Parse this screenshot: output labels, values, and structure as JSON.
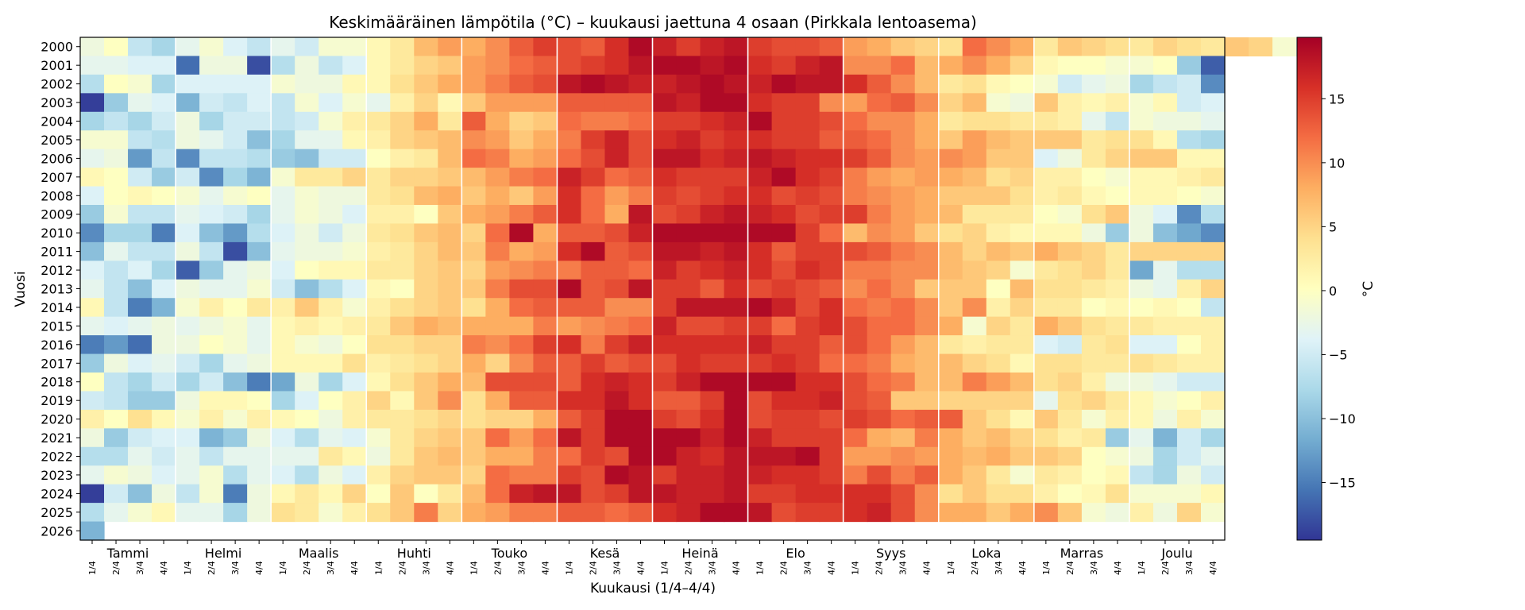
{
  "chart_data": {
    "type": "heatmap",
    "title": "Keskimääräinen lämpötila (°C) – kuukausi jaettuna 4 osaan (Pirkkala lentoasema)",
    "xlabel": "Kuukausi (1/4–4/4)",
    "ylabel": "Vuosi",
    "colorbar_label": "°C",
    "colormap": "RdYlBu_r",
    "vmin": -19.5,
    "vmax": 19.8,
    "colorbar_ticks": [
      -15,
      -10,
      -5,
      0,
      5,
      10,
      15
    ],
    "colorbar_tick_labels": [
      "−15",
      "−10",
      "−5",
      "0",
      "5",
      "10",
      "15"
    ],
    "years": [
      "2000",
      "2001",
      "2002",
      "2003",
      "2004",
      "2005",
      "2006",
      "2007",
      "2008",
      "2009",
      "2010",
      "2011",
      "2012",
      "2013",
      "2014",
      "2015",
      "2016",
      "2017",
      "2018",
      "2019",
      "2020",
      "2021",
      "2022",
      "2023",
      "2024",
      "2025",
      "2026"
    ],
    "months": [
      "Tammi",
      "Helmi",
      "Maalis",
      "Huhti",
      "Touko",
      "Kesä",
      "Heinä",
      "Elo",
      "Syys",
      "Loka",
      "Marras",
      "Joulu"
    ],
    "quarter_labels": [
      "1/4",
      "2/4",
      "3/4",
      "4/4"
    ],
    "values": [
      [
        -2,
        0,
        -6,
        -8,
        -3,
        -1,
        -4,
        -6,
        -3,
        -5,
        -1,
        -1,
        1,
        3,
        7,
        9,
        8,
        10,
        13,
        15,
        14,
        13,
        16,
        19,
        17,
        15,
        17,
        18,
        15,
        14,
        14,
        13,
        9,
        8,
        6,
        5,
        4,
        12,
        10,
        8,
        3,
        6,
        5,
        4,
        3,
        5,
        4,
        3,
        6,
        5,
        -1,
        -4
      ],
      [
        -3,
        -3,
        -4,
        -4,
        -16,
        -2,
        -2,
        -18,
        -7,
        -2,
        -6,
        -4,
        1,
        3,
        5,
        6,
        9,
        10,
        12,
        13,
        14,
        15,
        16,
        18,
        19,
        19,
        18,
        19,
        16,
        15,
        17,
        18,
        10,
        10,
        12,
        7,
        8,
        10,
        8,
        5,
        1,
        0,
        0,
        -1,
        -1,
        0,
        -9,
        -17
      ],
      [
        -7,
        0,
        -1,
        -8,
        -4,
        -4,
        -4,
        -4,
        -1,
        -2,
        -2,
        1,
        1,
        4,
        6,
        8,
        9,
        11,
        13,
        14,
        18,
        19,
        18,
        17,
        17,
        18,
        19,
        18,
        17,
        19,
        18,
        18,
        16,
        13,
        10,
        7,
        3,
        4,
        1,
        0,
        -1,
        -5,
        -3,
        -2,
        -8,
        -6,
        -5,
        -14
      ],
      [
        -19,
        -9,
        -3,
        -4,
        -11,
        -5,
        -6,
        -4,
        -6,
        -1,
        -4,
        -1,
        -3,
        2,
        5,
        1,
        6,
        9,
        9,
        9,
        13,
        13,
        13,
        13,
        18,
        17,
        19,
        19,
        16,
        15,
        15,
        10,
        9,
        12,
        13,
        10,
        5,
        7,
        -1,
        -2,
        6,
        2,
        1,
        2,
        -1,
        1,
        -5,
        -4
      ],
      [
        -8,
        -6,
        -8,
        -5,
        -2,
        -8,
        -5,
        -5,
        -6,
        -5,
        -1,
        2,
        3,
        5,
        8,
        3,
        13,
        8,
        5,
        6,
        12,
        11,
        11,
        12,
        15,
        15,
        16,
        17,
        19,
        15,
        15,
        14,
        12,
        10,
        10,
        8,
        3,
        4,
        4,
        3,
        3,
        2,
        -3,
        -6,
        -1,
        -2,
        -2,
        -3
      ],
      [
        -1,
        -1,
        -6,
        -7,
        -2,
        -3,
        -5,
        -10,
        -8,
        -3,
        -3,
        1,
        2,
        5,
        6,
        7,
        10,
        9,
        6,
        8,
        11,
        15,
        17,
        14,
        16,
        17,
        15,
        16,
        16,
        15,
        15,
        13,
        13,
        12,
        10,
        8,
        6,
        9,
        7,
        6,
        6,
        6,
        3,
        4,
        4,
        1,
        -7,
        -8
      ],
      [
        -3,
        -2,
        -13,
        -6,
        -14,
        -6,
        -6,
        -7,
        -9,
        -10,
        -5,
        -5,
        0,
        2,
        3,
        7,
        12,
        11,
        8,
        9,
        12,
        14,
        17,
        14,
        18,
        18,
        16,
        17,
        18,
        17,
        16,
        16,
        15,
        13,
        10,
        9,
        10,
        9,
        6,
        6,
        -4,
        -2,
        3,
        5,
        6,
        6,
        1,
        1
      ],
      [
        1,
        0,
        -5,
        -9,
        -5,
        -14,
        -8,
        -11,
        -1,
        3,
        3,
        5,
        3,
        5,
        5,
        6,
        7,
        9,
        11,
        12,
        17,
        15,
        12,
        13,
        16,
        15,
        15,
        15,
        17,
        19,
        16,
        15,
        11,
        9,
        8,
        9,
        8,
        7,
        4,
        5,
        2,
        2,
        0,
        -1,
        1,
        1,
        2,
        3
      ],
      [
        -4,
        0,
        1,
        0,
        -1,
        -3,
        -1,
        0,
        -3,
        -1,
        -2,
        -2,
        3,
        4,
        7,
        8,
        6,
        8,
        6,
        9,
        16,
        12,
        9,
        11,
        15,
        14,
        15,
        16,
        16,
        14,
        15,
        14,
        11,
        10,
        9,
        8,
        6,
        6,
        6,
        4,
        2,
        3,
        1,
        0,
        1,
        1,
        0,
        -1
      ],
      [
        -9,
        -1,
        -6,
        -6,
        -3,
        -4,
        -5,
        -8,
        -3,
        -1,
        -2,
        -4,
        2,
        2,
        0,
        6,
        8,
        9,
        11,
        13,
        16,
        12,
        8,
        18,
        14,
        15,
        17,
        18,
        17,
        16,
        14,
        15,
        15,
        11,
        9,
        8,
        7,
        3,
        3,
        3,
        0,
        -1,
        4,
        6,
        -2,
        -4,
        -14,
        -7
      ],
      [
        -14,
        -8,
        -8,
        -15,
        -4,
        -10,
        -13,
        -7,
        -4,
        -2,
        -5,
        -2,
        3,
        4,
        6,
        7,
        5,
        12,
        19,
        8,
        13,
        13,
        14,
        17,
        19,
        19,
        19,
        19,
        19,
        19,
        15,
        12,
        7,
        10,
        9,
        6,
        4,
        5,
        2,
        1,
        1,
        1,
        -2,
        -9,
        -2,
        -10,
        -12,
        -14
      ],
      [
        -10,
        -3,
        -6,
        -6,
        -2,
        -6,
        -18,
        -10,
        -3,
        -2,
        -2,
        -1,
        2,
        3,
        5,
        7,
        6,
        11,
        8,
        9,
        16,
        19,
        13,
        14,
        18,
        18,
        17,
        18,
        16,
        13,
        15,
        15,
        14,
        13,
        11,
        10,
        7,
        5,
        7,
        6,
        8,
        6,
        5,
        3,
        5,
        5,
        5,
        5
      ],
      [
        -4,
        -6,
        -4,
        -8,
        -17,
        -9,
        -3,
        -2,
        -4,
        0,
        1,
        1,
        3,
        3,
        5,
        6,
        5,
        9,
        10,
        11,
        11,
        13,
        13,
        12,
        17,
        15,
        16,
        17,
        16,
        14,
        16,
        15,
        11,
        11,
        10,
        10,
        7,
        6,
        5,
        -1,
        3,
        4,
        5,
        3,
        -12,
        -3,
        -7,
        -7
      ],
      [
        -3,
        -6,
        -10,
        -4,
        -2,
        -3,
        -3,
        -1,
        -5,
        -10,
        -7,
        -4,
        1,
        0,
        5,
        6,
        6,
        11,
        14,
        14,
        19,
        13,
        14,
        18,
        15,
        15,
        13,
        16,
        14,
        15,
        14,
        13,
        10,
        12,
        10,
        6,
        6,
        6,
        0,
        7,
        4,
        4,
        3,
        2,
        -2,
        -3,
        2,
        5
      ],
      [
        1,
        -6,
        -15,
        -11,
        -1,
        2,
        0,
        3,
        2,
        6,
        2,
        -1,
        2,
        4,
        5,
        6,
        4,
        8,
        12,
        13,
        13,
        13,
        10,
        10,
        15,
        18,
        18,
        18,
        19,
        17,
        14,
        16,
        12,
        11,
        12,
        10,
        6,
        10,
        2,
        5,
        3,
        3,
        0,
        1,
        0,
        1,
        0,
        -6
      ],
      [
        -3,
        -4,
        -3,
        -2,
        -3,
        -2,
        -1,
        -3,
        1,
        2,
        1,
        2,
        3,
        6,
        8,
        7,
        8,
        8,
        8,
        11,
        9,
        10,
        11,
        12,
        17,
        14,
        14,
        15,
        15,
        12,
        15,
        16,
        14,
        12,
        12,
        10,
        8,
        -1,
        5,
        3,
        8,
        6,
        4,
        3,
        3,
        2,
        2,
        2
      ],
      [
        -15,
        -13,
        -16,
        -2,
        -2,
        0,
        -1,
        -3,
        1,
        -1,
        -2,
        0,
        4,
        4,
        5,
        5,
        11,
        10,
        12,
        15,
        16,
        11,
        15,
        17,
        16,
        16,
        16,
        16,
        17,
        15,
        15,
        13,
        14,
        12,
        9,
        7,
        3,
        2,
        3,
        3,
        -4,
        -5,
        3,
        4,
        -4,
        -4,
        0,
        2
      ],
      [
        -9,
        -2,
        -4,
        -3,
        -5,
        -8,
        -3,
        -2,
        1,
        1,
        1,
        4,
        2,
        3,
        4,
        5,
        8,
        5,
        10,
        13,
        13,
        15,
        13,
        14,
        14,
        16,
        15,
        15,
        15,
        16,
        15,
        12,
        12,
        11,
        8,
        7,
        7,
        5,
        4,
        1,
        4,
        4,
        3,
        3,
        4,
        3,
        2,
        2
      ],
      [
        0,
        -6,
        -8,
        -5,
        -8,
        -5,
        -10,
        -15,
        -12,
        -2,
        -8,
        -4,
        1,
        4,
        6,
        8,
        7,
        14,
        14,
        14,
        13,
        16,
        17,
        16,
        15,
        17,
        19,
        19,
        19,
        19,
        16,
        16,
        14,
        12,
        11,
        7,
        7,
        11,
        9,
        7,
        4,
        5,
        2,
        -2,
        -2,
        -3,
        -5,
        -5
      ],
      [
        -5,
        -6,
        -9,
        -9,
        -2,
        1,
        1,
        0,
        -8,
        -4,
        0,
        2,
        5,
        1,
        6,
        10,
        4,
        8,
        13,
        13,
        16,
        16,
        18,
        16,
        13,
        13,
        15,
        19,
        14,
        16,
        16,
        17,
        14,
        13,
        6,
        6,
        5,
        5,
        5,
        5,
        -3,
        4,
        5,
        3,
        1,
        -1,
        0,
        2
      ],
      [
        2,
        0,
        4,
        1,
        -1,
        2,
        -1,
        2,
        1,
        0,
        -2,
        2,
        3,
        3,
        4,
        5,
        4,
        5,
        5,
        8,
        13,
        15,
        19,
        19,
        15,
        14,
        16,
        19,
        14,
        15,
        15,
        14,
        15,
        14,
        12,
        13,
        13,
        6,
        4,
        1,
        6,
        3,
        -1,
        2,
        1,
        -2,
        2,
        -1
      ],
      [
        -2,
        -9,
        -5,
        -4,
        -4,
        -11,
        -9,
        -2,
        -4,
        -7,
        -3,
        -4,
        -1,
        3,
        5,
        6,
        6,
        12,
        9,
        12,
        18,
        15,
        19,
        19,
        19,
        19,
        17,
        19,
        17,
        15,
        15,
        15,
        12,
        8,
        7,
        11,
        8,
        6,
        7,
        5,
        4,
        2,
        3,
        -9,
        -3,
        -11,
        -5,
        -8
      ],
      [
        -7,
        -7,
        -3,
        -5,
        -3,
        -6,
        -3,
        -3,
        -3,
        -3,
        3,
        1,
        -2,
        3,
        6,
        7,
        6,
        8,
        8,
        11,
        12,
        15,
        14,
        19,
        19,
        17,
        16,
        18,
        18,
        18,
        19,
        15,
        9,
        9,
        10,
        9,
        8,
        7,
        8,
        6,
        6,
        5,
        0,
        -1,
        -2,
        -8,
        -5,
        -3
      ],
      [
        -3,
        -1,
        -2,
        -4,
        -3,
        -1,
        -7,
        -3,
        -4,
        -7,
        -2,
        -4,
        2,
        5,
        6,
        6,
        5,
        12,
        11,
        11,
        15,
        14,
        19,
        18,
        15,
        17,
        17,
        18,
        17,
        16,
        16,
        15,
        11,
        14,
        11,
        13,
        8,
        6,
        3,
        -1,
        3,
        2,
        0,
        1,
        -6,
        -8,
        -2,
        -5
      ],
      [
        -19,
        -5,
        -10,
        -2,
        -6,
        -1,
        -15,
        -2,
        1,
        3,
        1,
        5,
        0,
        6,
        0,
        3,
        7,
        12,
        17,
        18,
        18,
        14,
        15,
        18,
        18,
        17,
        17,
        18,
        15,
        15,
        16,
        16,
        16,
        16,
        14,
        10,
        4,
        6,
        4,
        4,
        2,
        0,
        1,
        4,
        -1,
        -1,
        -1,
        1
      ],
      [
        -7,
        -3,
        -1,
        1,
        -3,
        -3,
        -8,
        -2,
        4,
        3,
        -1,
        2,
        4,
        6,
        11,
        5,
        8,
        9,
        11,
        11,
        13,
        13,
        12,
        13,
        16,
        17,
        19,
        19,
        18,
        14,
        15,
        15,
        16,
        17,
        14,
        10,
        8,
        8,
        6,
        8,
        10,
        6,
        -1,
        -2,
        2,
        -2,
        5,
        -1
      ],
      [
        -11
      ]
    ]
  }
}
